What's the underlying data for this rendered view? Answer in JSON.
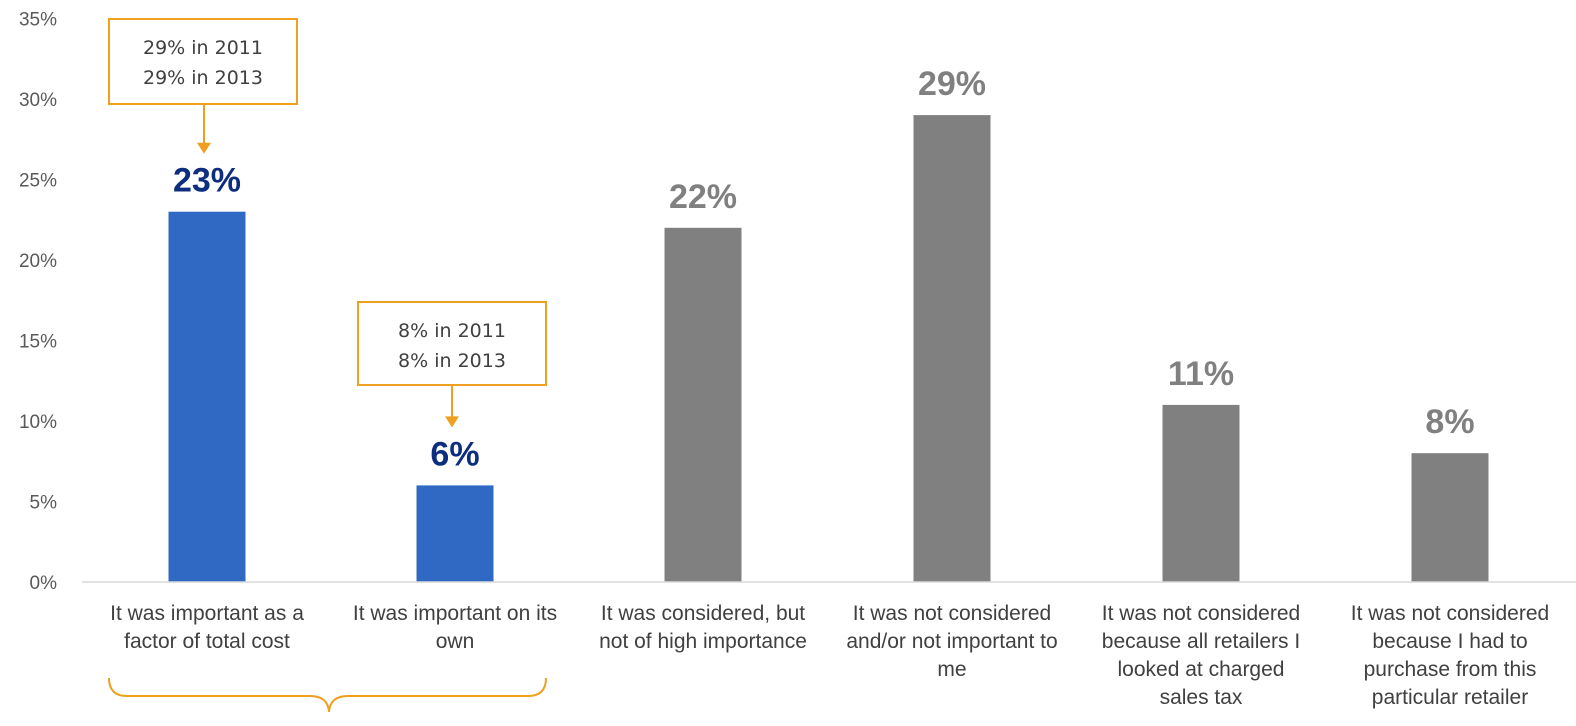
{
  "chart_data": {
    "type": "bar",
    "categories": [
      "It was important as a factor of total cost",
      "It was important on its own",
      "It was considered, but not of high importance",
      "It was not considered and/or not important to me",
      "It was not considered because all retailers I looked at charged sales tax",
      "It was not considered because I had to purchase from this particular retailer"
    ],
    "category_lines": [
      [
        "It was important as a",
        "factor of total cost"
      ],
      [
        "It was important on its",
        "own"
      ],
      [
        "It was considered, but",
        "not of high importance"
      ],
      [
        "It was not considered",
        "and/or not important to",
        "me"
      ],
      [
        "It was not considered",
        "because all retailers I",
        "looked at charged",
        "sales tax"
      ],
      [
        "It was not considered",
        "because I had to",
        "purchase from this",
        "particular retailer"
      ]
    ],
    "values": [
      23,
      6,
      22,
      29,
      11,
      8
    ],
    "data_labels": [
      "23%",
      "6%",
      "22%",
      "29%",
      "11%",
      "8%"
    ],
    "ylim": [
      0,
      35
    ],
    "yticks": [
      0,
      5,
      10,
      15,
      20,
      25,
      30,
      35
    ],
    "ytick_labels": [
      "0%",
      "5%",
      "10%",
      "15%",
      "20%",
      "25%",
      "30%",
      "35%"
    ],
    "grid": false,
    "title": "",
    "xlabel": "",
    "ylabel": "",
    "colors": {
      "highlight_bar": "#3069c3",
      "other_bar": "#808080",
      "highlight_label": "#0d2d7f",
      "other_label": "#808080",
      "callout_border": "#f0a020",
      "axis": "#d9d9d9"
    },
    "highlighted": [
      true,
      true,
      false,
      false,
      false,
      false
    ],
    "annotations": [
      {
        "lines": [
          "29% in 2011",
          "29% in 2013"
        ],
        "category_index": 0
      },
      {
        "lines": [
          "8% in 2011",
          "8% in 2013"
        ],
        "category_index": 1
      }
    ]
  }
}
